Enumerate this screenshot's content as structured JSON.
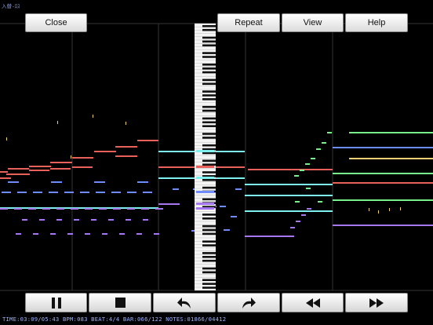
{
  "corner_label": "入替-ﾛｽ",
  "top_buttons": {
    "close": "Close",
    "repeat": "Repeat",
    "view": "View",
    "help": "Help"
  },
  "transport": [
    {
      "name": "pause",
      "icon": "pause-icon"
    },
    {
      "name": "stop",
      "icon": "stop-icon"
    },
    {
      "name": "undo",
      "icon": "undo-arrow-icon"
    },
    {
      "name": "redo",
      "icon": "redo-arrow-icon"
    },
    {
      "name": "rewind",
      "icon": "rewind-icon"
    },
    {
      "name": "fast-forward",
      "icon": "fast-forward-icon"
    }
  ],
  "status": "TIME:03:09/05:43 BPM:083 BEAT:4/4 BAR:066/122 NOTES:01866/04412",
  "colors": {
    "background": "#000000",
    "grid": "#333333",
    "red": "#e8605a",
    "cyan": "#7ff0f0",
    "blue": "#6f8cff",
    "purple": "#a777f0",
    "green": "#78f08c",
    "yellow": "#f0d070",
    "salmon": "#f07860"
  }
}
